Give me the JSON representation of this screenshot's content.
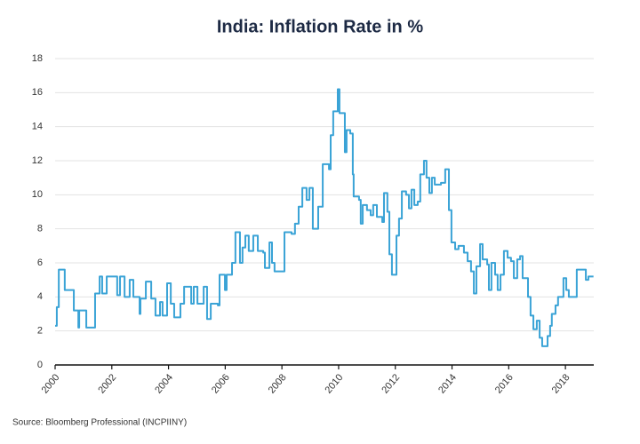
{
  "chart_data": {
    "type": "line",
    "title": "India: Inflation Rate in %",
    "source": "Source: Bloomberg Professional (INCPIINY)",
    "step": true,
    "grid": true,
    "xlim": [
      2000,
      2019
    ],
    "xticks": [
      2000,
      2002,
      2004,
      2006,
      2008,
      2010,
      2012,
      2014,
      2016,
      2018
    ],
    "ylim": [
      0,
      18
    ],
    "yticks": [
      0,
      2,
      4,
      6,
      8,
      10,
      12,
      14,
      16,
      18
    ],
    "series": [
      {
        "name": "India",
        "color": "#3aa3d6",
        "x": [
          2000.0,
          2000.06,
          2000.13,
          2000.34,
          2000.66,
          2000.82,
          2000.85,
          2001.1,
          2001.41,
          2001.57,
          2001.66,
          2001.82,
          2002.19,
          2002.29,
          2002.45,
          2002.63,
          2002.76,
          2002.98,
          2003.01,
          2003.2,
          2003.39,
          2003.54,
          2003.7,
          2003.79,
          2003.95,
          2004.08,
          2004.2,
          2004.42,
          2004.55,
          2004.8,
          2004.89,
          2005.02,
          2005.24,
          2005.36,
          2005.49,
          2005.74,
          2005.8,
          2005.99,
          2006.05,
          2006.24,
          2006.36,
          2006.52,
          2006.61,
          2006.71,
          2006.83,
          2006.99,
          2007.15,
          2007.34,
          2007.4,
          2007.56,
          2007.65,
          2007.74,
          2008.09,
          2008.34,
          2008.46,
          2008.59,
          2008.72,
          2008.87,
          2008.97,
          2009.09,
          2009.28,
          2009.44,
          2009.66,
          2009.72,
          2009.81,
          2009.97,
          2010.03,
          2010.22,
          2010.28,
          2010.41,
          2010.5,
          2010.53,
          2010.72,
          2010.78,
          2010.85,
          2011.0,
          2011.13,
          2011.22,
          2011.35,
          2011.54,
          2011.6,
          2011.72,
          2011.79,
          2011.88,
          2012.04,
          2012.13,
          2012.23,
          2012.38,
          2012.48,
          2012.57,
          2012.67,
          2012.79,
          2012.88,
          2013.01,
          2013.1,
          2013.2,
          2013.29,
          2013.39,
          2013.61,
          2013.76,
          2013.89,
          2013.98,
          2014.11,
          2014.23,
          2014.42,
          2014.55,
          2014.67,
          2014.77,
          2014.86,
          2014.99,
          2015.08,
          2015.24,
          2015.3,
          2015.39,
          2015.52,
          2015.61,
          2015.71,
          2015.83,
          2015.96,
          2016.08,
          2016.18,
          2016.3,
          2016.4,
          2016.49,
          2016.68,
          2016.77,
          2016.87,
          2016.99,
          2017.09,
          2017.18,
          2017.37,
          2017.46,
          2017.52,
          2017.65,
          2017.74,
          2017.93,
          2018.03,
          2018.12,
          2018.4,
          2018.72,
          2018.81,
          2018.99
        ],
        "values": [
          2.3,
          3.4,
          5.6,
          4.4,
          3.2,
          2.2,
          3.2,
          2.2,
          4.2,
          5.2,
          4.2,
          5.2,
          4.1,
          5.2,
          4.0,
          5.0,
          4.0,
          3.0,
          3.9,
          4.9,
          3.9,
          2.9,
          3.7,
          2.9,
          4.8,
          3.6,
          2.8,
          3.6,
          4.6,
          3.6,
          4.6,
          3.6,
          4.6,
          2.7,
          3.6,
          3.5,
          5.3,
          4.4,
          5.3,
          6.0,
          7.8,
          6.0,
          6.9,
          7.6,
          6.7,
          7.6,
          6.7,
          6.6,
          5.7,
          7.2,
          6.0,
          5.5,
          7.8,
          7.7,
          8.3,
          9.3,
          10.4,
          9.7,
          10.4,
          8.0,
          9.3,
          11.8,
          11.5,
          13.5,
          14.9,
          16.2,
          14.8,
          12.5,
          13.8,
          13.6,
          11.2,
          9.9,
          9.7,
          8.3,
          9.4,
          9.1,
          8.8,
          9.4,
          8.7,
          8.4,
          10.1,
          9.0,
          6.5,
          5.3,
          7.6,
          8.6,
          10.2,
          10.0,
          9.2,
          10.3,
          9.4,
          9.6,
          11.2,
          12.0,
          11.0,
          10.1,
          11.0,
          10.6,
          10.7,
          11.5,
          9.1,
          7.2,
          6.8,
          7.0,
          6.6,
          6.1,
          5.5,
          4.2,
          5.8,
          7.1,
          6.2,
          5.9,
          4.4,
          6.0,
          5.3,
          4.4,
          5.3,
          6.7,
          6.3,
          6.1,
          5.1,
          6.2,
          6.4,
          5.1,
          4.0,
          2.9,
          2.1,
          2.6,
          1.6,
          1.1,
          1.7,
          2.3,
          3.0,
          3.5,
          4.0,
          5.1,
          4.4,
          4.0,
          5.6,
          5.0,
          5.2,
          5.2
        ]
      }
    ]
  }
}
